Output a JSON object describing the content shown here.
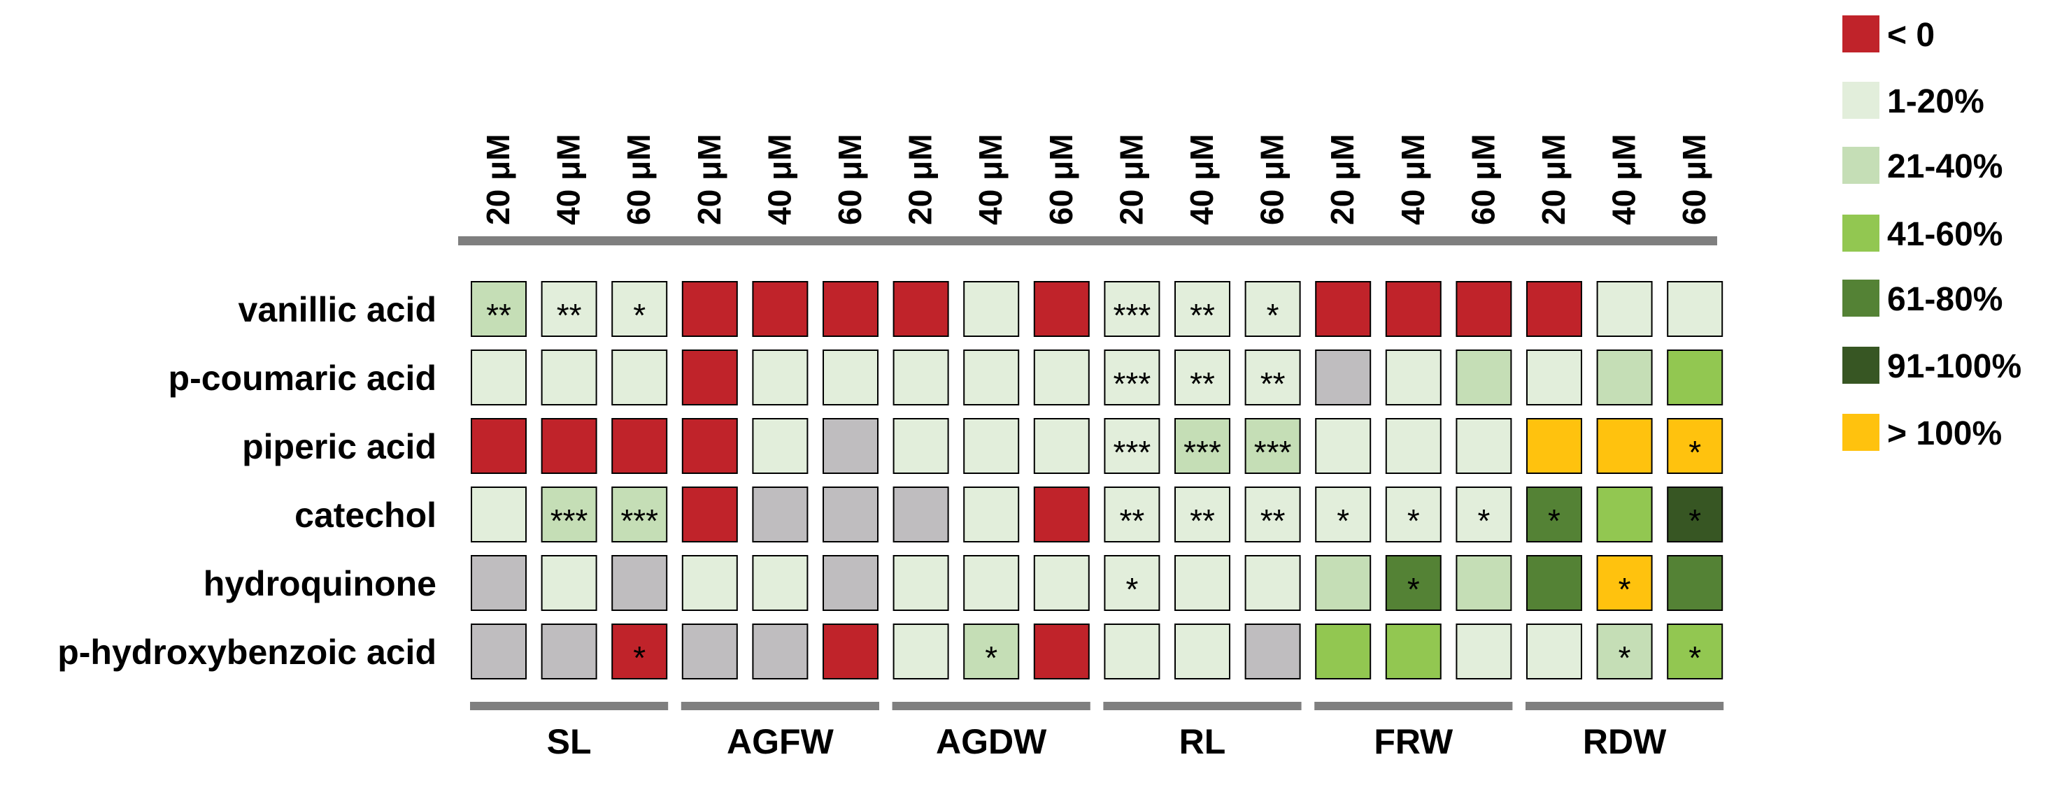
{
  "chart_data": {
    "type": "heatmap",
    "title": "",
    "rows": [
      "vanillic acid",
      "p-coumaric acid",
      "piperic acid",
      "catechol",
      "hydroquinone",
      "p-hydroxybenzoic acid"
    ],
    "groups": [
      "SL",
      "AGFW",
      "AGDW",
      "RL",
      "FRW",
      "RDW"
    ],
    "concentrations": [
      "20 μM",
      "40 μM",
      "60 μM"
    ],
    "legend": [
      {
        "key": "neg",
        "label": "< 0",
        "color": "#c0232a"
      },
      {
        "key": "c1",
        "label": "1-20%",
        "color": "#e2eedb"
      },
      {
        "key": "c2",
        "label": "21-40%",
        "color": "#c5deb6"
      },
      {
        "key": "c3",
        "label": "41-60%",
        "color": "#92c751"
      },
      {
        "key": "c4",
        "label": "61-80%",
        "color": "#548235"
      },
      {
        "key": "c5",
        "label": "91-100%",
        "color": "#375623"
      },
      {
        "key": "over",
        "label": "> 100%",
        "color": "#ffc20e"
      }
    ],
    "na_color": "#bfbdbf",
    "cells": [
      [
        "c2",
        "c1",
        "c1",
        "neg",
        "neg",
        "neg",
        "neg",
        "c1",
        "neg",
        "c1",
        "c1",
        "c1",
        "neg",
        "neg",
        "neg",
        "neg",
        "c1",
        "c1"
      ],
      [
        "c1",
        "c1",
        "c1",
        "neg",
        "c1",
        "c1",
        "c1",
        "c1",
        "c1",
        "c1",
        "c1",
        "c1",
        "na",
        "c1",
        "c2",
        "c1",
        "c2",
        "c3"
      ],
      [
        "neg",
        "neg",
        "neg",
        "neg",
        "c1",
        "na",
        "c1",
        "c1",
        "c1",
        "c1",
        "c2",
        "c2",
        "c1",
        "c1",
        "c1",
        "over",
        "over",
        "over"
      ],
      [
        "c1",
        "c2",
        "c2",
        "neg",
        "na",
        "na",
        "na",
        "c1",
        "neg",
        "c1",
        "c1",
        "c1",
        "c1",
        "c1",
        "c1",
        "c4",
        "c3",
        "c5"
      ],
      [
        "na",
        "c1",
        "na",
        "c1",
        "c1",
        "na",
        "c1",
        "c1",
        "c1",
        "c1",
        "c1",
        "c1",
        "c2",
        "c4",
        "c2",
        "c4",
        "over",
        "c4"
      ],
      [
        "na",
        "na",
        "neg",
        "na",
        "na",
        "neg",
        "c1",
        "c2",
        "neg",
        "c1",
        "c1",
        "na",
        "c3",
        "c3",
        "c1",
        "c1",
        "c2",
        "c3"
      ]
    ],
    "significance": [
      [
        "**",
        "**",
        "*",
        "",
        "",
        "",
        "",
        "",
        "",
        "***",
        "**",
        "*",
        "",
        "",
        "",
        "",
        "",
        ""
      ],
      [
        "",
        "",
        "",
        "",
        "",
        "",
        "",
        "",
        "",
        "***",
        "**",
        "**",
        "",
        "",
        "",
        "",
        "",
        ""
      ],
      [
        "",
        "",
        "",
        "",
        "",
        "",
        "",
        "",
        "",
        "***",
        "***",
        "***",
        "",
        "",
        "",
        "",
        "",
        "*"
      ],
      [
        "",
        "***",
        "***",
        "",
        "",
        "",
        "",
        "",
        "",
        "**",
        "**",
        "**",
        "*",
        "*",
        "*",
        "*",
        "",
        "*"
      ],
      [
        "",
        "",
        "",
        "",
        "",
        "",
        "",
        "",
        "",
        "*",
        "",
        "",
        "",
        "*",
        "",
        "",
        "*",
        ""
      ],
      [
        "",
        "",
        "*",
        "",
        "",
        "",
        "",
        "*",
        "",
        "",
        "",
        "",
        "",
        "",
        "",
        "",
        "*",
        "*"
      ]
    ]
  }
}
